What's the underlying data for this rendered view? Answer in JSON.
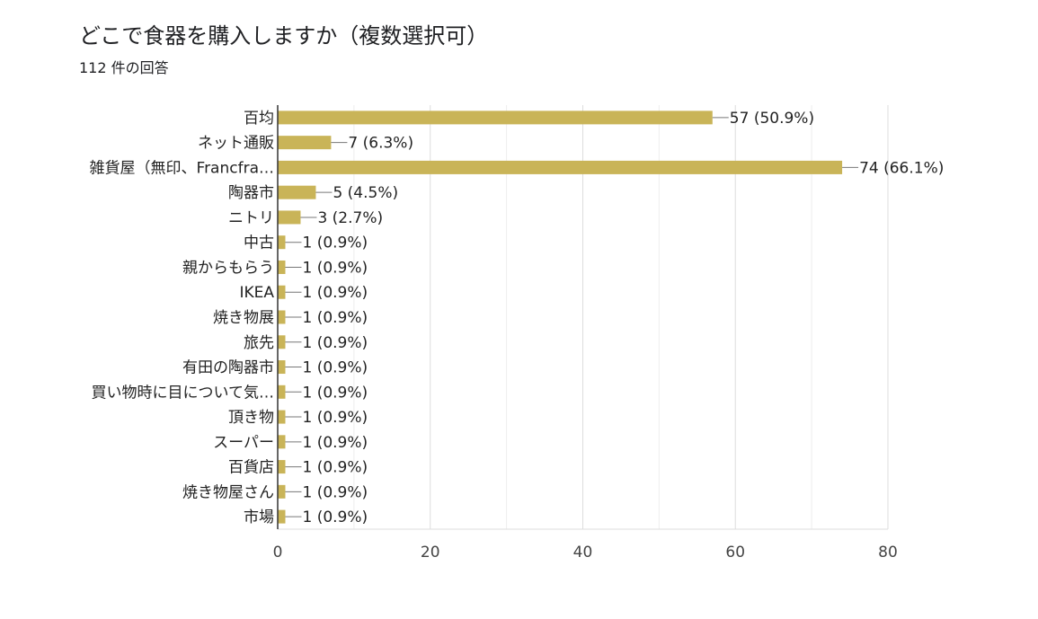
{
  "header": {
    "title": "どこで食器を購入しますか（複数選択可）",
    "response_count": "112 件の回答"
  },
  "chart_data": {
    "type": "bar",
    "orientation": "horizontal",
    "categories": [
      "百均",
      "ネット通販",
      "雑貨屋（無印、Francfra…",
      "陶器市",
      "ニトリ",
      "中古",
      "親からもらう",
      "IKEA",
      "焼き物展",
      "旅先",
      "有田の陶器市",
      "買い物時に目について気…",
      "頂き物",
      "スーパー",
      "百貨店",
      "焼き物屋さん",
      "市場"
    ],
    "values": [
      57,
      7,
      74,
      5,
      3,
      1,
      1,
      1,
      1,
      1,
      1,
      1,
      1,
      1,
      1,
      1,
      1
    ],
    "data_labels": [
      "57 (50.9%)",
      "7 (6.3%)",
      "74 (66.1%)",
      "5 (4.5%)",
      "3 (2.7%)",
      "1 (0.9%)",
      "1 (0.9%)",
      "1 (0.9%)",
      "1 (0.9%)",
      "1 (0.9%)",
      "1 (0.9%)",
      "1 (0.9%)",
      "1 (0.9%)",
      "1 (0.9%)",
      "1 (0.9%)",
      "1 (0.9%)",
      "1 (0.9%)"
    ],
    "xlim": [
      0,
      80
    ],
    "xticks": [
      "0",
      "20",
      "40",
      "60",
      "80"
    ],
    "grid": true,
    "bar_color": "#c9b458"
  }
}
